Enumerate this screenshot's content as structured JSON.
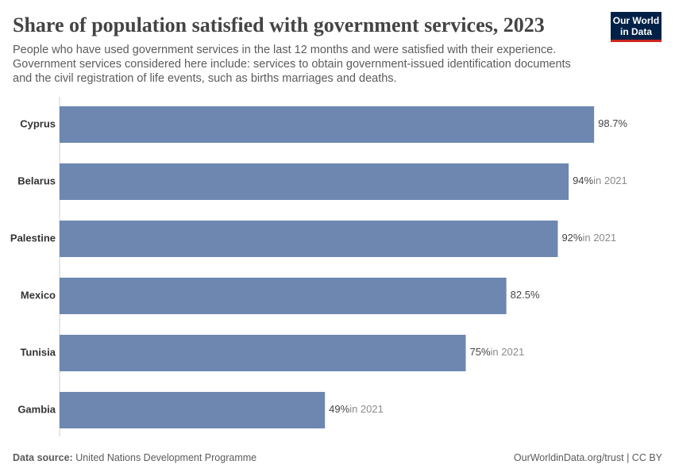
{
  "chart_data": {
    "type": "bar",
    "orientation": "horizontal",
    "title": "Share of population satisfied with government services, 2023",
    "subtitle": [
      "People who have used government services in the last 12 months and were satisfied with their experience.",
      "Government services considered here include: services to obtain government-issued identification documents",
      "and the civil registration of life events, such as births marriages and deaths."
    ],
    "categories": [
      "Cyprus",
      "Belarus",
      "Palestine",
      "Mexico",
      "Tunisia",
      "Gambia"
    ],
    "values": [
      98.7,
      94,
      92,
      82.5,
      75,
      49
    ],
    "value_labels": [
      "98.7%",
      "94%",
      "92%",
      "82.5%",
      "75%",
      "49%"
    ],
    "value_notes": [
      null,
      "in 2021",
      "in 2021",
      null,
      "in 2021",
      "in 2021"
    ],
    "color": "#6d87b1",
    "xlim": [
      0,
      100
    ],
    "source_label": "Data source:",
    "source": "United Nations Development Programme",
    "footer_right": "OurWorldinData.org/trust | CC BY",
    "logo": [
      "Our World",
      "in Data"
    ]
  }
}
